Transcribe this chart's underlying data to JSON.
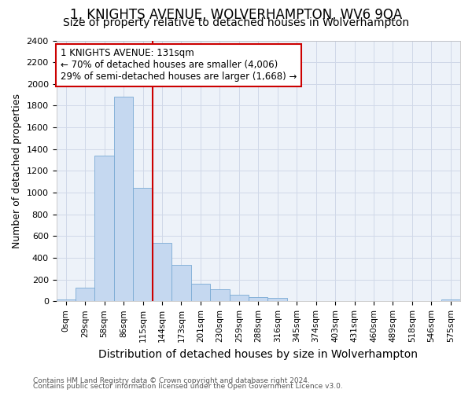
{
  "title": "1, KNIGHTS AVENUE, WOLVERHAMPTON, WV6 9QA",
  "subtitle": "Size of property relative to detached houses in Wolverhampton",
  "xlabel": "Distribution of detached houses by size in Wolverhampton",
  "ylabel": "Number of detached properties",
  "categories": [
    "0sqm",
    "29sqm",
    "58sqm",
    "86sqm",
    "115sqm",
    "144sqm",
    "173sqm",
    "201sqm",
    "230sqm",
    "259sqm",
    "288sqm",
    "316sqm",
    "345sqm",
    "374sqm",
    "403sqm",
    "431sqm",
    "460sqm",
    "489sqm",
    "518sqm",
    "546sqm",
    "575sqm"
  ],
  "values": [
    15,
    125,
    1340,
    1880,
    1045,
    540,
    335,
    165,
    110,
    60,
    35,
    28,
    0,
    0,
    0,
    0,
    0,
    0,
    0,
    0,
    15
  ],
  "bar_color": "#c5d8f0",
  "bar_edge_color": "#7aaad4",
  "vline_color": "#cc0000",
  "annotation_text": "1 KNIGHTS AVENUE: 131sqm\n← 70% of detached houses are smaller (4,006)\n29% of semi-detached houses are larger (1,668) →",
  "annotation_box_color": "#cc0000",
  "ylim": [
    0,
    2400
  ],
  "yticks": [
    0,
    200,
    400,
    600,
    800,
    1000,
    1200,
    1400,
    1600,
    1800,
    2000,
    2200,
    2400
  ],
  "footer1": "Contains HM Land Registry data © Crown copyright and database right 2024.",
  "footer2": "Contains public sector information licensed under the Open Government Licence v3.0.",
  "title_fontsize": 12,
  "subtitle_fontsize": 10,
  "ylabel_fontsize": 9,
  "xlabel_fontsize": 10,
  "grid_color": "#d0d8e8",
  "bg_color": "#edf2f9"
}
